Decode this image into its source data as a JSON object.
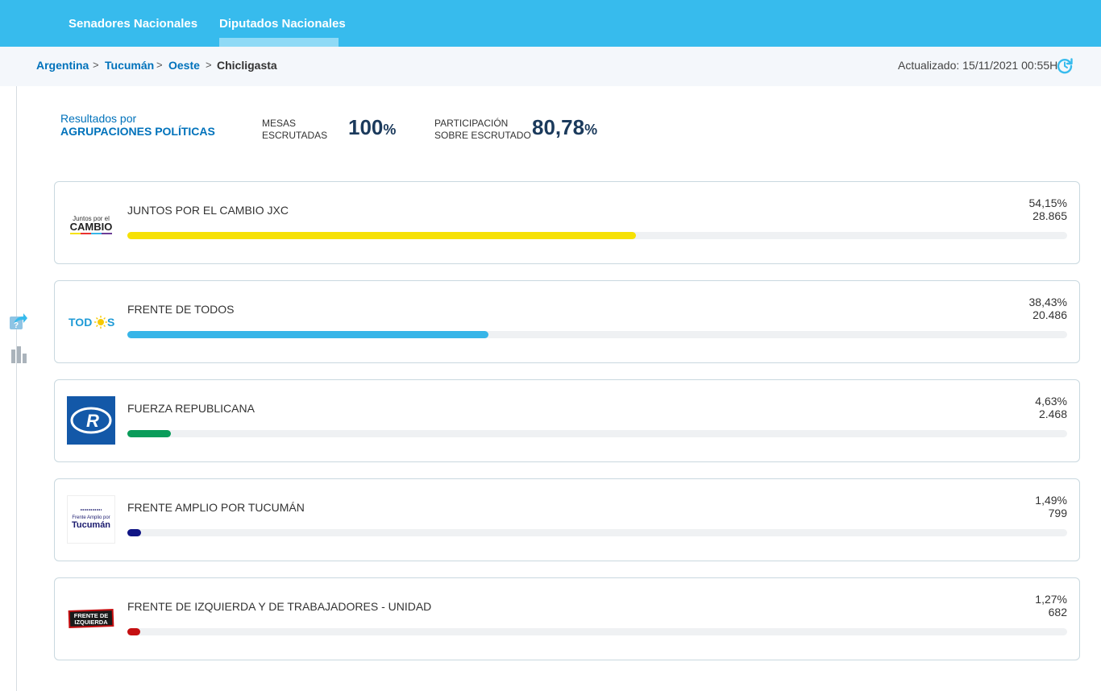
{
  "nav": {
    "tabs": [
      {
        "label": "Senadores Nacionales"
      },
      {
        "label": "Diputados Nacionales"
      }
    ]
  },
  "breadcrumb": {
    "items": [
      "Argentina",
      "Tucumán",
      "Oeste",
      "Chicligasta"
    ],
    "separator": ">"
  },
  "updated": "Actualizado: 15/11/2021 00:55H",
  "summary": {
    "title_line1": "Resultados por",
    "title_line2": "AGRUPACIONES POLÍTICAS",
    "mesas_label1": "MESAS",
    "mesas_label2": "ESCRUTADAS",
    "mesas_value": "100",
    "mesas_unit": "%",
    "part_label1": "PARTICIPACIÓN",
    "part_label2": "SOBRE ESCRUTADO",
    "part_value": "80,78",
    "part_unit": "%"
  },
  "parties": [
    {
      "name": "JUNTOS POR EL CAMBIO JXC",
      "pct": "54,15%",
      "votes": "28.865",
      "share": 0.5415,
      "color": "#f6e104",
      "logo_text": [
        "Juntos por el",
        "CAMBIO"
      ]
    },
    {
      "name": "FRENTE DE TODOS",
      "pct": "38,43%",
      "votes": "20.486",
      "share": 0.3843,
      "color": "#37b5e8",
      "logo_text": [
        "TODOS"
      ]
    },
    {
      "name": "FUERZA REPUBLICANA",
      "pct": "4,63%",
      "votes": "2.468",
      "share": 0.0463,
      "color": "#0a9c5a",
      "logo_text": [
        "R"
      ]
    },
    {
      "name": "FRENTE AMPLIO POR TUCUMÁN",
      "pct": "1,49%",
      "votes": "799",
      "share": 0.0149,
      "color": "#101585",
      "logo_text": [
        "Frente Amplio por",
        "Tucumán"
      ]
    },
    {
      "name": "FRENTE DE IZQUIERDA Y DE TRABAJADORES - UNIDAD",
      "pct": "1,27%",
      "votes": "682",
      "share": 0.0127,
      "color": "#c50f11",
      "logo_text": [
        "FRENTE DE",
        "IZQUIERDA"
      ]
    }
  ],
  "icons": {
    "refresh": "refresh-icon",
    "share": "share-icon",
    "chart": "bar-chart-icon"
  }
}
